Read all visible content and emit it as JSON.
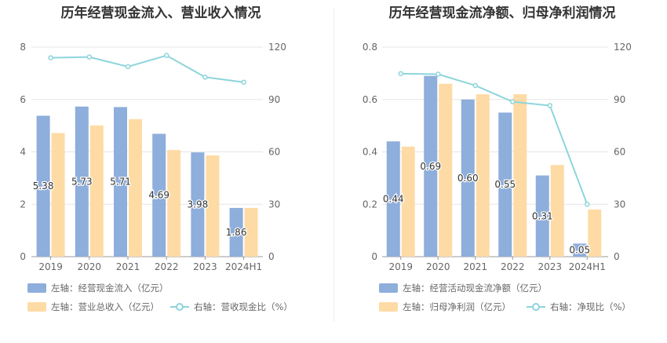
{
  "charts": [
    {
      "title": "历年经营现金流入、营业收入情况",
      "categories": [
        "2019",
        "2020",
        "2021",
        "2022",
        "2023",
        "2024H1"
      ],
      "left_ticks": [
        "0",
        "2",
        "4",
        "6",
        "8"
      ],
      "right_ticks": [
        "0",
        "30",
        "60",
        "90",
        "120"
      ],
      "legend": [
        {
          "label": "左轴：经营现金流入（亿元）",
          "kind": "bar",
          "color": "#8eaedb"
        },
        {
          "label": "左轴：营业总收入（亿元）",
          "kind": "bar",
          "color": "#fedba5"
        },
        {
          "label": "右轴：营收现金比（%）",
          "kind": "line",
          "color": "#8dd5db"
        }
      ]
    },
    {
      "title": "历年经营现金流净额、归母净利润情况",
      "categories": [
        "2019",
        "2020",
        "2021",
        "2022",
        "2023",
        "2024H1"
      ],
      "left_ticks": [
        "0",
        "0.2",
        "0.4",
        "0.6",
        "0.8"
      ],
      "right_ticks": [
        "0",
        "30",
        "60",
        "90",
        "120"
      ],
      "legend": [
        {
          "label": "左轴：经营活动现金流净额（亿元）",
          "kind": "bar",
          "color": "#8eaedb"
        },
        {
          "label": "左轴：归母净利润（亿元）",
          "kind": "bar",
          "color": "#fedba5"
        },
        {
          "label": "右轴：净现比（%）",
          "kind": "line",
          "color": "#8dd5db"
        }
      ]
    }
  ],
  "chart_data": [
    {
      "type": "bar",
      "title": "历年经营现金流入、营业收入情况",
      "categories": [
        "2019",
        "2020",
        "2021",
        "2022",
        "2023",
        "2024H1"
      ],
      "y_left_lim": [
        0,
        8
      ],
      "y_right_lim": [
        0,
        120
      ],
      "grid": true,
      "legend_position": "bottom",
      "series": [
        {
          "name": "左轴：经营现金流入（亿元）",
          "type": "bar",
          "axis": "left",
          "color": "#8eaedb",
          "values": [
            5.38,
            5.73,
            5.71,
            4.69,
            3.98,
            1.86
          ],
          "labels": [
            "5.38",
            "5.73",
            "5.71",
            "4.69",
            "3.98",
            "1.86"
          ]
        },
        {
          "name": "左轴：营业总收入（亿元）",
          "type": "bar",
          "axis": "left",
          "color": "#fedba5",
          "values": [
            4.72,
            5.01,
            5.25,
            4.07,
            3.87,
            1.86
          ]
        },
        {
          "name": "右轴：营收现金比（%）",
          "type": "line",
          "axis": "right",
          "color": "#8dd5db",
          "values": [
            113.9,
            114.3,
            108.8,
            115.2,
            102.8,
            99.9
          ]
        }
      ]
    },
    {
      "type": "bar",
      "title": "历年经营现金流净额、归母净利润情况",
      "categories": [
        "2019",
        "2020",
        "2021",
        "2022",
        "2023",
        "2024H1"
      ],
      "y_left_lim": [
        0,
        0.8
      ],
      "y_right_lim": [
        0,
        120
      ],
      "grid": true,
      "legend_position": "bottom",
      "series": [
        {
          "name": "左轴：经营活动现金流净额（亿元）",
          "type": "bar",
          "axis": "left",
          "color": "#8eaedb",
          "values": [
            0.44,
            0.69,
            0.6,
            0.55,
            0.31,
            0.05
          ],
          "labels": [
            "0.44",
            "0.69",
            "0.60",
            "0.55",
            "0.31",
            "0.05"
          ]
        },
        {
          "name": "左轴：归母净利润（亿元）",
          "type": "bar",
          "axis": "left",
          "color": "#fedba5",
          "values": [
            0.42,
            0.66,
            0.62,
            0.62,
            0.35,
            0.18
          ]
        },
        {
          "name": "右轴：净现比（%）",
          "type": "line",
          "axis": "right",
          "color": "#8dd5db",
          "values": [
            104.8,
            104.5,
            98.0,
            88.7,
            86.5,
            30.0
          ]
        }
      ]
    }
  ]
}
